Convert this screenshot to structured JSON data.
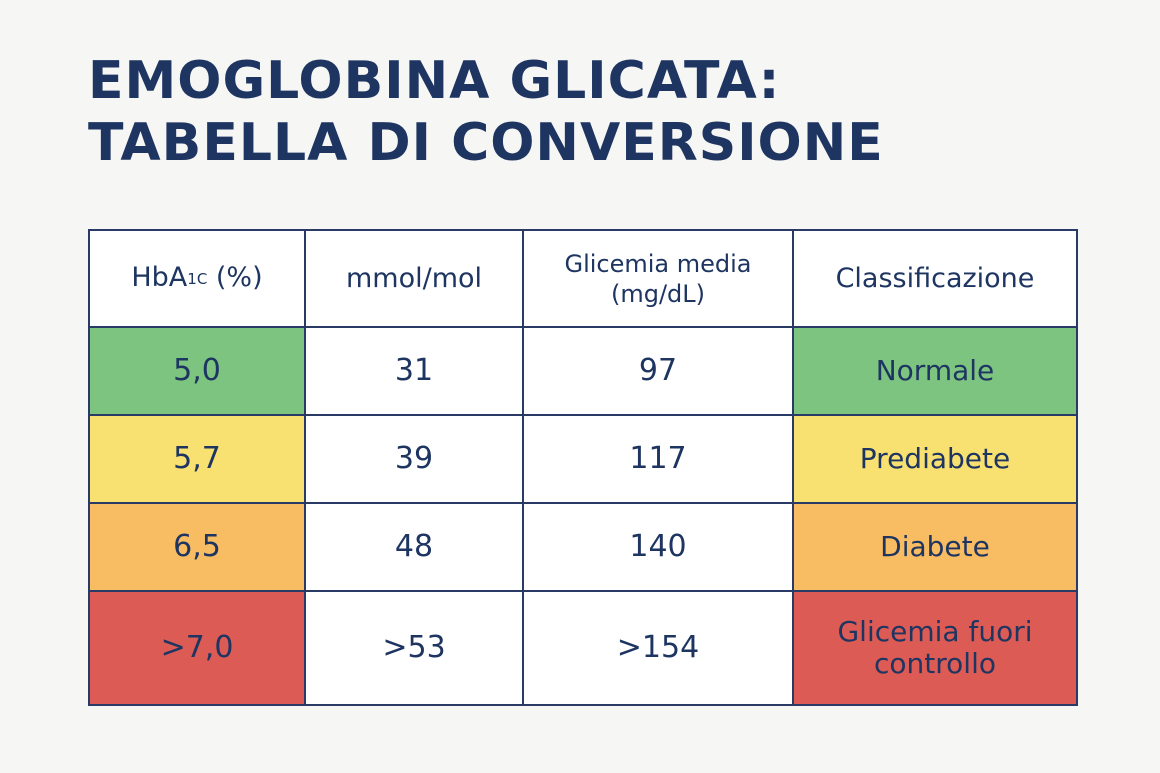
{
  "title": {
    "line1": "EMOGLOBINA GLICATA:",
    "line2": "TABELLA DI CONVERSIONE"
  },
  "table": {
    "headers": {
      "hba1c_prefix": "HbA",
      "hba1c_sub": "1C",
      "hba1c_suffix": " (%)",
      "mmol": "mmol/mol",
      "glicemia_line1": "Glicemia media",
      "glicemia_line2": "(mg/dL)",
      "classificazione": "Classificazione"
    },
    "rows": [
      {
        "hba1c": "5,0",
        "mmol": "31",
        "glicemia": "97",
        "classificazione": "Normale",
        "color": "#7cc47f"
      },
      {
        "hba1c": "5,7",
        "mmol": "39",
        "glicemia": "117",
        "classificazione": "Prediabete",
        "color": "#f8e071"
      },
      {
        "hba1c": "6,5",
        "mmol": "48",
        "glicemia": "140",
        "classificazione": "Diabete",
        "color": "#f8bc62"
      },
      {
        "hba1c": ">7,0",
        "mmol": ">53",
        "glicemia": ">154",
        "classificazione_line1": "Glicemia fuori",
        "classificazione_line2": "controllo",
        "color": "#dd5b55"
      }
    ]
  }
}
